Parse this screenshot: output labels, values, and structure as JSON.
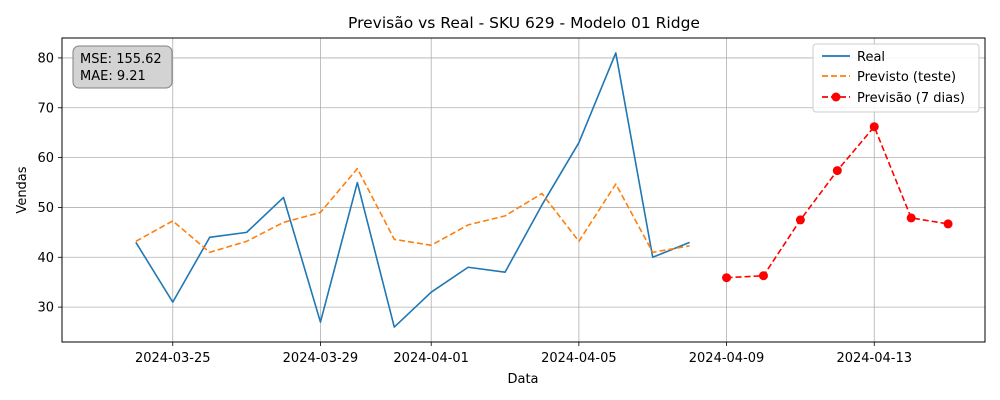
{
  "chart_data": {
    "type": "line",
    "title": "Previsão vs Real - SKU 629 - Modelo 01 Ridge",
    "xlabel": "Data",
    "ylabel": "Vendas",
    "ylim": [
      23,
      84
    ],
    "xlim": [
      "2024-03-22",
      "2024-04-16"
    ],
    "x_ticks": [
      "2024-03-25",
      "2024-03-29",
      "2024-04-01",
      "2024-04-05",
      "2024-04-09",
      "2024-04-13"
    ],
    "y_ticks": [
      30,
      40,
      50,
      60,
      70,
      80
    ],
    "grid": true,
    "legend_position": "top-right",
    "metrics": {
      "mse": "MSE: 155.62",
      "mae": "MAE: 9.21"
    },
    "series": [
      {
        "name": "Real",
        "color": "#1f77b4",
        "style": "solid",
        "x": [
          "2024-03-24",
          "2024-03-25",
          "2024-03-26",
          "2024-03-27",
          "2024-03-28",
          "2024-03-29",
          "2024-03-30",
          "2024-03-31",
          "2024-04-01",
          "2024-04-02",
          "2024-04-03",
          "2024-04-04",
          "2024-04-05",
          "2024-04-06",
          "2024-04-07",
          "2024-04-08"
        ],
        "values": [
          43,
          31,
          44,
          45,
          52,
          27,
          55,
          26,
          33,
          38,
          37,
          50.5,
          63,
          81,
          40,
          43
        ]
      },
      {
        "name": "Previsto (teste)",
        "color": "#ff7f0e",
        "style": "dashed",
        "x": [
          "2024-03-24",
          "2024-03-25",
          "2024-03-26",
          "2024-03-27",
          "2024-03-28",
          "2024-03-29",
          "2024-03-30",
          "2024-03-31",
          "2024-04-01",
          "2024-04-02",
          "2024-04-03",
          "2024-04-04",
          "2024-04-05",
          "2024-04-06",
          "2024-04-07",
          "2024-04-08"
        ],
        "values": [
          43.2,
          47.3,
          41,
          43.2,
          47,
          49,
          57.8,
          43.6,
          42.4,
          46.5,
          48.3,
          52.8,
          43.2,
          54.7,
          41,
          42.3
        ]
      },
      {
        "name": "Previsão (7 dias)",
        "color": "#ff0000",
        "style": "dashed-markers",
        "x": [
          "2024-04-09",
          "2024-04-10",
          "2024-04-11",
          "2024-04-12",
          "2024-04-13",
          "2024-04-14",
          "2024-04-15"
        ],
        "values": [
          35.9,
          36.3,
          47.5,
          57.4,
          66.2,
          47.9,
          46.7
        ]
      }
    ]
  }
}
